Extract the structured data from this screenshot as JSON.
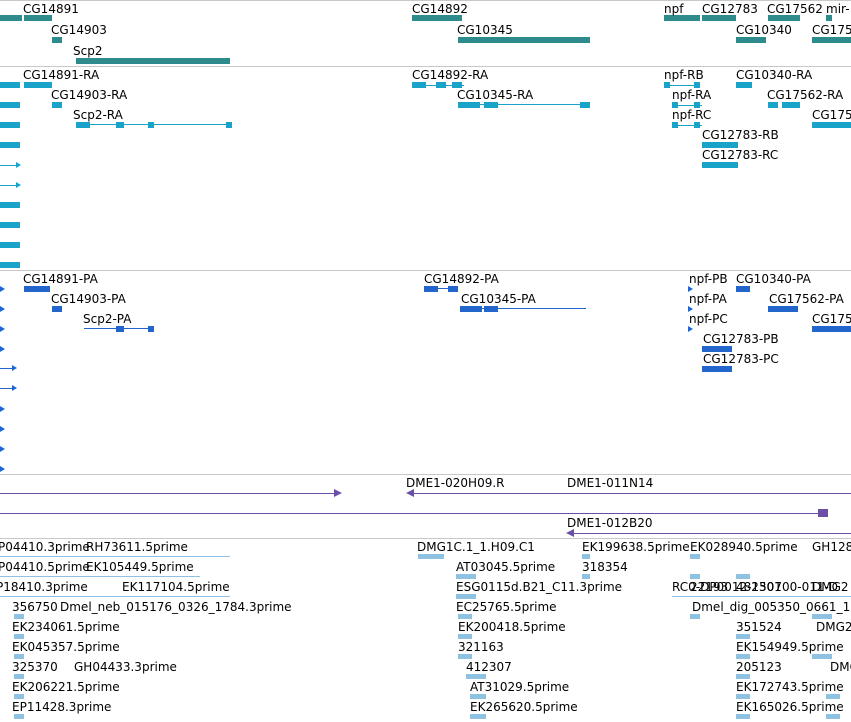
{
  "colors": {
    "gene": "#2e8b8b",
    "transcript_ra": "#1aa3c8",
    "transcript_pa": "#2266cc",
    "clone": "#6b4fa6",
    "est": "#8fc1e3",
    "separator": "#c8c8c8"
  },
  "genes_track": {
    "labels": [
      "CG14891",
      "CG14903",
      "Scp2",
      "CG14892",
      "CG10345",
      "npf",
      "CG12783",
      "CG17562",
      "mir-",
      "CG10340",
      "CG175"
    ]
  },
  "transcripts_ra_track": {
    "labels": [
      "CG14891-RA",
      "CG14903-RA",
      "Scp2-RA",
      "CG14892-RA",
      "CG10345-RA",
      "npf-RB",
      "npf-RA",
      "npf-RC",
      "CG12783-RB",
      "CG12783-RC",
      "CG10340-RA",
      "CG17562-RA",
      "CG175"
    ]
  },
  "transcripts_pa_track": {
    "labels": [
      "CG14891-PA",
      "CG14903-PA",
      "Scp2-PA",
      "CG14892-PA",
      "CG10345-PA",
      "npf-PB",
      "npf-PA",
      "npf-PC",
      "CG12783-PB",
      "CG12783-PC",
      "CG10340-PA",
      "CG17562-PA",
      "CG175"
    ]
  },
  "clones_track": {
    "labels": [
      "DME1-020H09.R",
      "DME1-011N14",
      "DME1-012B20"
    ]
  },
  "est_track": {
    "labels": [
      "P04410.3prime",
      "RH73611.5prime",
      "P04410.5prime",
      "EK105449.5prime",
      "P18410.3prime",
      "EK117104.5prime",
      "356750",
      "Dmel_neb_015176_0326_1784.3prime",
      "EK234061.5prime",
      "EK045357.5prime",
      "325370",
      "GH04433.3prime",
      "EK206221.5prime",
      "EP11428.3prime",
      "DMG1C.1_1.H09.C1",
      "AT03045.5prime",
      "ESG0115d.B21_C11.3prime",
      "EC25765.5prime",
      "EK200418.5prime",
      "321163",
      "412307",
      "AT31029.5prime",
      "EK265620.5prime",
      "EK199638.5prime",
      "318354",
      "EK028940.5prime",
      "RC0-DP0012-150700-011-D",
      "22193",
      "482301",
      "Dmel_dig_005350_0661_1",
      "351524",
      "EK154949.5prime",
      "205123",
      "EK172743.5prime",
      "EK165026.5prime",
      "GH128",
      "DMG2",
      "DMG2",
      "DMG"
    ]
  }
}
